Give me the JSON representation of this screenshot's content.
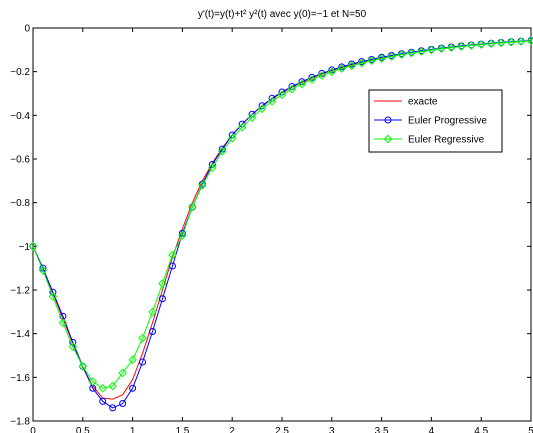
{
  "chart_data": {
    "type": "line",
    "title": "y'(t)=y(t)+t² y²(t) avec y(0)=−1 et N=50",
    "xlabel": "",
    "ylabel": "",
    "xlim": [
      0,
      5
    ],
    "ylim": [
      -1.8,
      0
    ],
    "xticks": [
      0,
      0.5,
      1,
      1.5,
      2,
      2.5,
      3,
      3.5,
      4,
      4.5,
      5
    ],
    "yticks": [
      0,
      -0.2,
      -0.4,
      -0.6,
      -0.8,
      -1,
      -1.2,
      -1.4,
      -1.6,
      -1.8
    ],
    "xtick_labels": [
      "0",
      "0.5",
      "1",
      "1.5",
      "2",
      "2.5",
      "3",
      "3.5",
      "4",
      "4.5",
      "5"
    ],
    "ytick_labels": [
      "0",
      "−0.2",
      "−0.4",
      "−0.6",
      "−0.8",
      "−1",
      "−1.2",
      "−1.4",
      "−1.6",
      "−1.8"
    ],
    "grid": false,
    "legend_position": "top-right",
    "x": [
      0,
      0.1,
      0.2,
      0.3,
      0.4,
      0.5,
      0.6,
      0.7,
      0.8,
      0.9,
      1.0,
      1.1,
      1.2,
      1.3,
      1.4,
      1.5,
      1.6,
      1.7,
      1.8,
      1.9,
      2.0,
      2.1,
      2.2,
      2.3,
      2.4,
      2.5,
      2.6,
      2.7,
      2.8,
      2.9,
      3.0,
      3.1,
      3.2,
      3.3,
      3.4,
      3.5,
      3.6,
      3.7,
      3.8,
      3.9,
      4.0,
      4.1,
      4.2,
      4.3,
      4.4,
      4.5,
      4.6,
      4.7,
      4.8,
      4.9,
      5.0
    ],
    "series": [
      {
        "name": "exacte",
        "color": "#ff0000",
        "marker": "none",
        "values": [
          -1.0,
          -1.105,
          -1.215,
          -1.33,
          -1.445,
          -1.555,
          -1.64,
          -1.695,
          -1.7,
          -1.68,
          -1.61,
          -1.49,
          -1.35,
          -1.2,
          -1.05,
          -0.92,
          -0.8,
          -0.7,
          -0.62,
          -0.55,
          -0.49,
          -0.44,
          -0.396,
          -0.358,
          -0.325,
          -0.296,
          -0.271,
          -0.249,
          -0.229,
          -0.211,
          -0.195,
          -0.181,
          -0.168,
          -0.156,
          -0.146,
          -0.136,
          -0.127,
          -0.119,
          -0.112,
          -0.105,
          -0.099,
          -0.093,
          -0.088,
          -0.083,
          -0.079,
          -0.075,
          -0.071,
          -0.067,
          -0.064,
          -0.061,
          -0.058
        ]
      },
      {
        "name": "Euler Progressive",
        "color": "#0000ff",
        "marker": "circle",
        "values": [
          -1.0,
          -1.1,
          -1.21,
          -1.32,
          -1.44,
          -1.55,
          -1.65,
          -1.71,
          -1.74,
          -1.72,
          -1.65,
          -1.53,
          -1.39,
          -1.24,
          -1.09,
          -0.94,
          -0.82,
          -0.715,
          -0.625,
          -0.555,
          -0.49,
          -0.44,
          -0.395,
          -0.356,
          -0.322,
          -0.293,
          -0.268,
          -0.246,
          -0.226,
          -0.208,
          -0.192,
          -0.178,
          -0.165,
          -0.154,
          -0.144,
          -0.134,
          -0.126,
          -0.118,
          -0.111,
          -0.104,
          -0.098,
          -0.092,
          -0.087,
          -0.082,
          -0.078,
          -0.074,
          -0.07,
          -0.066,
          -0.063,
          -0.06,
          -0.057
        ]
      },
      {
        "name": "Euler Regressive",
        "color": "#00ff00",
        "marker": "diamond",
        "values": [
          -1.0,
          -1.11,
          -1.23,
          -1.35,
          -1.46,
          -1.55,
          -1.62,
          -1.65,
          -1.64,
          -1.58,
          -1.52,
          -1.42,
          -1.3,
          -1.17,
          -1.04,
          -0.95,
          -0.82,
          -0.72,
          -0.64,
          -0.565,
          -0.505,
          -0.455,
          -0.41,
          -0.37,
          -0.336,
          -0.306,
          -0.28,
          -0.257,
          -0.236,
          -0.218,
          -0.201,
          -0.186,
          -0.173,
          -0.161,
          -0.15,
          -0.14,
          -0.131,
          -0.122,
          -0.115,
          -0.108,
          -0.101,
          -0.095,
          -0.09,
          -0.085,
          -0.08,
          -0.076,
          -0.072,
          -0.068,
          -0.065,
          -0.062,
          -0.059
        ]
      }
    ]
  }
}
